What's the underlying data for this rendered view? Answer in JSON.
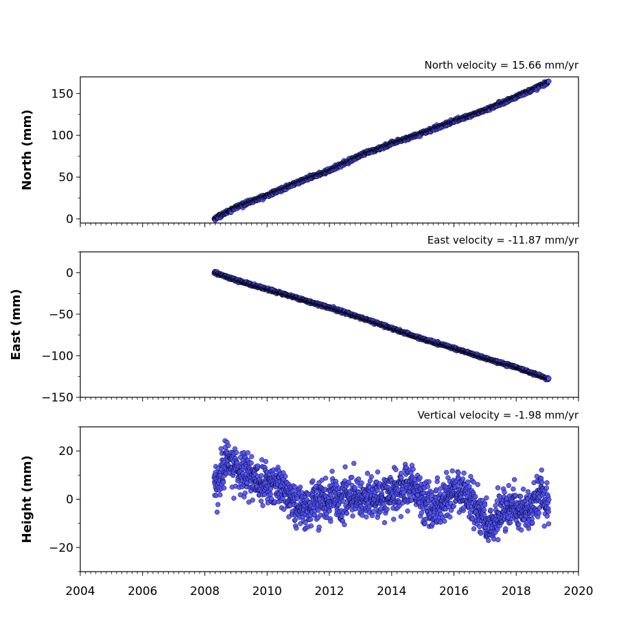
{
  "figure": {
    "background": "#ffffff"
  },
  "chart_data": [
    {
      "type": "scatter",
      "panel": "north",
      "title": "North velocity = 15.66 mm/yr",
      "title_position": "top-right",
      "ylabel": "North (mm)",
      "xlim": [
        2004,
        2020
      ],
      "ylim": [
        -5,
        170
      ],
      "yticks": [
        0,
        50,
        100,
        150
      ],
      "xticks": [
        2004,
        2006,
        2008,
        2010,
        2012,
        2014,
        2016,
        2018,
        2020
      ],
      "show_xticklabels": false,
      "velocity_mm_per_yr": 15.66,
      "series": [
        {
          "color": "#5050ff",
          "edge_color": "#000000",
          "x_range": [
            2008.3,
            2019.05
          ],
          "y_start": 0,
          "y_end": 164,
          "noise_mm": 2,
          "sample_points": [
            [
              2008.3,
              0
            ],
            [
              2009,
              14
            ],
            [
              2010,
              28
            ],
            [
              2011,
              44
            ],
            [
              2012,
              58
            ],
            [
              2013,
              76
            ],
            [
              2014,
              90
            ],
            [
              2015,
              103
            ],
            [
              2016,
              117
            ],
            [
              2017,
              130
            ],
            [
              2018,
              146
            ],
            [
              2019.05,
              164
            ]
          ]
        }
      ]
    },
    {
      "type": "scatter",
      "panel": "east",
      "title": "East velocity = -11.87 mm/yr",
      "title_position": "top-right",
      "ylabel": "East (mm)",
      "xlim": [
        2004,
        2020
      ],
      "ylim": [
        -150,
        25
      ],
      "yticks": [
        0,
        -50,
        -100,
        -150
      ],
      "ytick_labels": [
        "0",
        "−50",
        "−100",
        "−150"
      ],
      "xticks": [
        2004,
        2006,
        2008,
        2010,
        2012,
        2014,
        2016,
        2018,
        2020
      ],
      "show_xticklabels": false,
      "velocity_mm_per_yr": -11.87,
      "series": [
        {
          "color": "#5050ff",
          "edge_color": "#000000",
          "x_range": [
            2008.3,
            2019.05
          ],
          "y_start": 0,
          "y_end": -128,
          "noise_mm": 1.5,
          "sample_points": [
            [
              2008.3,
              0
            ],
            [
              2009,
              -9
            ],
            [
              2010,
              -20
            ],
            [
              2011,
              -31
            ],
            [
              2012,
              -42
            ],
            [
              2013,
              -54
            ],
            [
              2014,
              -67
            ],
            [
              2015,
              -80
            ],
            [
              2016,
              -91
            ],
            [
              2017,
              -103
            ],
            [
              2018,
              -114
            ],
            [
              2019.05,
              -128
            ]
          ]
        }
      ]
    },
    {
      "type": "scatter",
      "panel": "height",
      "title": "Vertical velocity = -1.98 mm/yr",
      "title_position": "top-right",
      "ylabel": "Height (mm)",
      "xlim": [
        2004,
        2020
      ],
      "ylim": [
        -30,
        30
      ],
      "yticks": [
        20,
        0,
        -20
      ],
      "ytick_labels": [
        "20",
        "0",
        "−20"
      ],
      "xticks": [
        2004,
        2006,
        2008,
        2010,
        2012,
        2014,
        2016,
        2018,
        2020
      ],
      "xtick_labels": [
        "2004",
        "2006",
        "2008",
        "2010",
        "2012",
        "2014",
        "2016",
        "2018",
        "2020"
      ],
      "show_xticklabels": true,
      "velocity_mm_per_yr": -1.98,
      "series": [
        {
          "color": "#5050ff",
          "edge_color": "#000000",
          "x_range": [
            2008.3,
            2019.05
          ],
          "y_start": 7,
          "y_end": -2,
          "noise_mm": 6,
          "sample_points": [
            [
              2008.3,
              5
            ],
            [
              2008.7,
              15
            ],
            [
              2009.5,
              8
            ],
            [
              2010.5,
              5
            ],
            [
              2011.2,
              -5
            ],
            [
              2012,
              1
            ],
            [
              2013,
              0
            ],
            [
              2014,
              2
            ],
            [
              2014.7,
              6
            ],
            [
              2015.3,
              -5
            ],
            [
              2016,
              5
            ],
            [
              2016.7,
              -2
            ],
            [
              2017.1,
              -12
            ],
            [
              2017.6,
              -3
            ],
            [
              2018.3,
              -5
            ],
            [
              2018.8,
              3
            ],
            [
              2019.05,
              -6
            ]
          ]
        }
      ]
    }
  ]
}
